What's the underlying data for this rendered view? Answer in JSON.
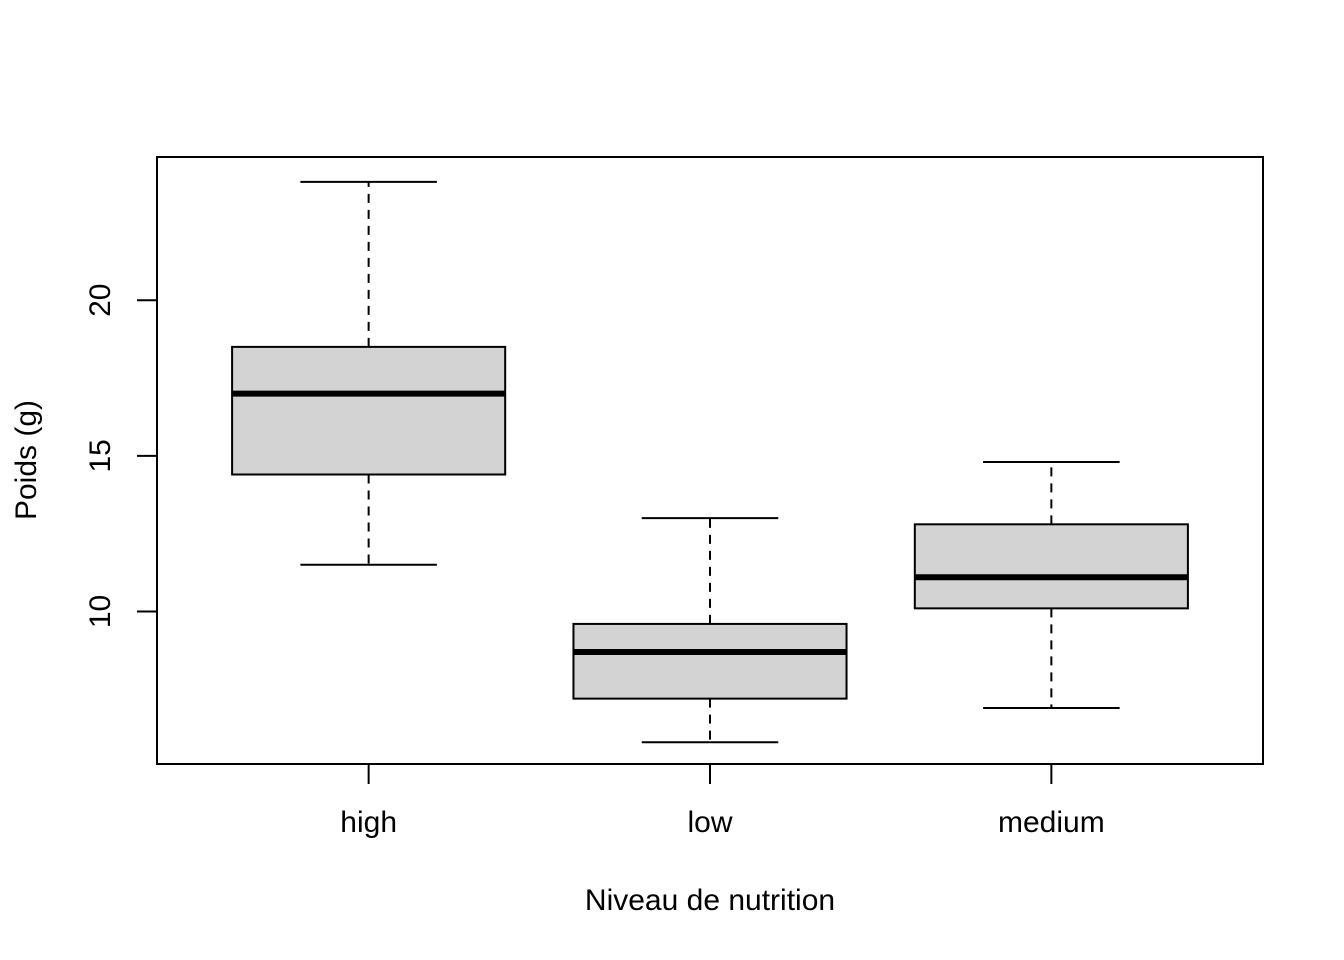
{
  "chart_data": {
    "type": "boxplot",
    "title": "",
    "xlabel": "Niveau de nutrition",
    "ylabel": "Poids (g)",
    "categories": [
      "high",
      "low",
      "medium"
    ],
    "boxes": [
      {
        "category": "high",
        "whisker_low": 11.5,
        "q1": 14.4,
        "median": 17.0,
        "q3": 18.5,
        "whisker_high": 23.8
      },
      {
        "category": "low",
        "whisker_low": 5.8,
        "q1": 7.2,
        "median": 8.7,
        "q3": 9.6,
        "whisker_high": 13.0
      },
      {
        "category": "medium",
        "whisker_low": 6.9,
        "q1": 10.1,
        "median": 11.1,
        "q3": 12.8,
        "whisker_high": 14.8
      }
    ],
    "yticks": [
      10,
      15,
      20
    ],
    "ylim": [
      5.1,
      24.6
    ],
    "grid": false,
    "colors": {
      "box_fill": "#d3d3d3",
      "stroke": "#000000",
      "background": "#ffffff"
    }
  }
}
